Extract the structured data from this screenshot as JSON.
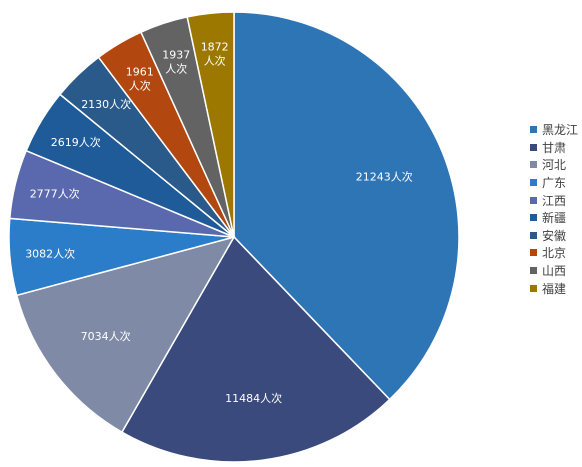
{
  "chart_data": {
    "type": "pie",
    "categories": [
      "黑龙江",
      "甘肃",
      "河北",
      "广东",
      "江西",
      "新疆",
      "安徽",
      "北京",
      "山西",
      "福建"
    ],
    "values": [
      21243,
      11484,
      7034,
      3082,
      2777,
      2619,
      2130,
      1961,
      1937,
      1872
    ],
    "data_labels": [
      "21243人次",
      "11484人次",
      "7034人次",
      "3082人次",
      "2777人次",
      "2619人次",
      "2130人次",
      "1961人次",
      "1937人次",
      "1872人次"
    ],
    "data_labels_wrapped": [
      false,
      false,
      false,
      false,
      false,
      false,
      false,
      true,
      true,
      true
    ],
    "colors": [
      "#2e75b6",
      "#3a4a7d",
      "#7f8ba6",
      "#2b7cc9",
      "#5a68ad",
      "#1f5b99",
      "#2a5a8a",
      "#b2470f",
      "#636363",
      "#9c7800"
    ],
    "legend_position": "right",
    "start_angle": "12 o'clock",
    "direction": "clockwise"
  }
}
